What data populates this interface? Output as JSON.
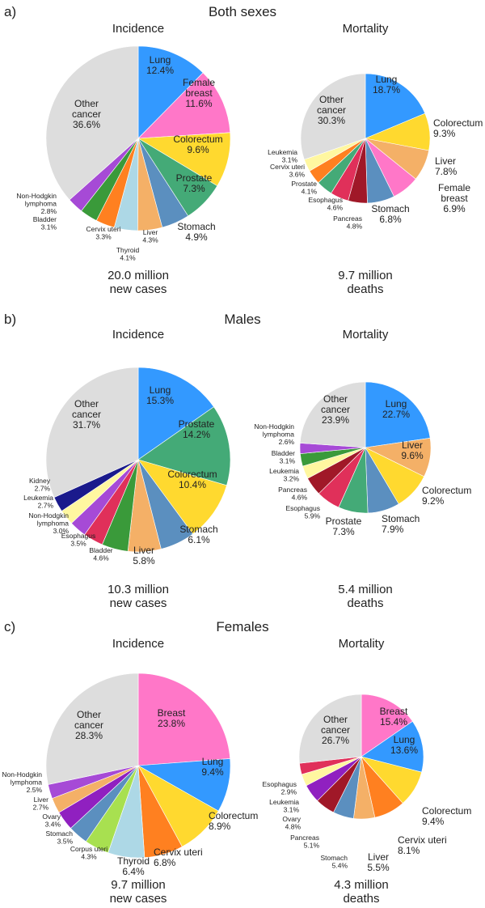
{
  "colors": {
    "Lung": "#3399ff",
    "Female breast": "#ff77c8",
    "Breast": "#ff77c8",
    "Colorectum": "#ffd92f",
    "Prostate": "#44aa77",
    "Stomach": "#5b8fbf",
    "Liver": "#f4b067",
    "Thyroid": "#add8e6",
    "Cervix uteri": "#ff8020",
    "Bladder": "#3a9a3a",
    "Non-Hodgkin lymphoma": "#a64ad6",
    "Other cancer": "#dddddd",
    "Leukemia": "#fff7a0",
    "Esophagus": "#e0305a",
    "Pancreas": "#a01828",
    "Kidney": "#1a1a8c",
    "Ovary": "#9020c0",
    "Corpus uteri": "#a8e050"
  },
  "chart_data": [
    {
      "type": "pie",
      "panel": "a)",
      "group": "Both sexes",
      "title": "Incidence",
      "total": [
        "20.0 million",
        "new cases"
      ],
      "slices": [
        {
          "name": "Lung",
          "value": 12.4
        },
        {
          "name": "Female breast",
          "value": 11.6
        },
        {
          "name": "Colorectum",
          "value": 9.6
        },
        {
          "name": "Prostate",
          "value": 7.3
        },
        {
          "name": "Stomach",
          "value": 4.9
        },
        {
          "name": "Liver",
          "value": 4.3
        },
        {
          "name": "Thyroid",
          "value": 4.1
        },
        {
          "name": "Cervix uteri",
          "value": 3.3
        },
        {
          "name": "Bladder",
          "value": 3.1
        },
        {
          "name": "Non-Hodgkin lymphoma",
          "value": 2.8
        },
        {
          "name": "Other cancer",
          "value": 36.6
        }
      ]
    },
    {
      "type": "pie",
      "panel": "",
      "group": "",
      "title": "Mortality",
      "total": [
        "9.7 million",
        "deaths"
      ],
      "slices": [
        {
          "name": "Lung",
          "value": 18.7
        },
        {
          "name": "Colorectum",
          "value": 9.3
        },
        {
          "name": "Liver",
          "value": 7.8
        },
        {
          "name": "Female breast",
          "value": 6.9
        },
        {
          "name": "Stomach",
          "value": 6.8
        },
        {
          "name": "Pancreas",
          "value": 4.8
        },
        {
          "name": "Esophagus",
          "value": 4.6
        },
        {
          "name": "Prostate",
          "value": 4.1
        },
        {
          "name": "Cervix uteri",
          "value": 3.6
        },
        {
          "name": "Leukemia",
          "value": 3.1
        },
        {
          "name": "Other cancer",
          "value": 30.3
        }
      ]
    },
    {
      "type": "pie",
      "panel": "b)",
      "group": "Males",
      "title": "Incidence",
      "total": [
        "10.3 million",
        "new cases"
      ],
      "slices": [
        {
          "name": "Lung",
          "value": 15.3
        },
        {
          "name": "Prostate",
          "value": 14.2
        },
        {
          "name": "Colorectum",
          "value": 10.4
        },
        {
          "name": "Stomach",
          "value": 6.1
        },
        {
          "name": "Liver",
          "value": 5.8
        },
        {
          "name": "Bladder",
          "value": 4.6
        },
        {
          "name": "Esophagus",
          "value": 3.5
        },
        {
          "name": "Non-Hodgkin lymphoma",
          "value": 3.0
        },
        {
          "name": "Leukemia",
          "value": 2.7
        },
        {
          "name": "Kidney",
          "value": 2.7
        },
        {
          "name": "Other cancer",
          "value": 31.7
        }
      ]
    },
    {
      "type": "pie",
      "panel": "",
      "group": "",
      "title": "Mortality",
      "total": [
        "5.4 million",
        "deaths"
      ],
      "slices": [
        {
          "name": "Lung",
          "value": 22.7
        },
        {
          "name": "Liver",
          "value": 9.6
        },
        {
          "name": "Colorectum",
          "value": 9.2
        },
        {
          "name": "Stomach",
          "value": 7.9
        },
        {
          "name": "Prostate",
          "value": 7.3
        },
        {
          "name": "Esophagus",
          "value": 5.9
        },
        {
          "name": "Pancreas",
          "value": 4.6
        },
        {
          "name": "Leukemia",
          "value": 3.2
        },
        {
          "name": "Bladder",
          "value": 3.1
        },
        {
          "name": "Non-Hodgkin lymphoma",
          "value": 2.6
        },
        {
          "name": "Other cancer",
          "value": 23.9
        }
      ]
    },
    {
      "type": "pie",
      "panel": "c)",
      "group": "Females",
      "title": "Incidence",
      "total": [
        "9.7 million",
        "new cases"
      ],
      "slices": [
        {
          "name": "Breast",
          "value": 23.8
        },
        {
          "name": "Lung",
          "value": 9.4
        },
        {
          "name": "Colorectum",
          "value": 8.9
        },
        {
          "name": "Cervix uteri",
          "value": 6.8
        },
        {
          "name": "Thyroid",
          "value": 6.4
        },
        {
          "name": "Corpus uteri",
          "value": 4.3
        },
        {
          "name": "Stomach",
          "value": 3.5
        },
        {
          "name": "Ovary",
          "value": 3.4
        },
        {
          "name": "Liver",
          "value": 2.7
        },
        {
          "name": "Non-Hodgkin lymphoma",
          "value": 2.5
        },
        {
          "name": "Other cancer",
          "value": 28.3
        }
      ]
    },
    {
      "type": "pie",
      "panel": "",
      "group": "",
      "title": "Mortality",
      "total": [
        "4.3 million",
        "deaths"
      ],
      "slices": [
        {
          "name": "Breast",
          "value": 15.4
        },
        {
          "name": "Lung",
          "value": 13.6
        },
        {
          "name": "Colorectum",
          "value": 9.4
        },
        {
          "name": "Cervix uteri",
          "value": 8.1
        },
        {
          "name": "Liver",
          "value": 5.5
        },
        {
          "name": "Stomach",
          "value": 5.4
        },
        {
          "name": "Pancreas",
          "value": 5.1
        },
        {
          "name": "Ovary",
          "value": 4.8
        },
        {
          "name": "Leukemia",
          "value": 3.1
        },
        {
          "name": "Esophagus",
          "value": 2.9
        },
        {
          "name": "Other cancer",
          "value": 26.7
        }
      ]
    }
  ]
}
